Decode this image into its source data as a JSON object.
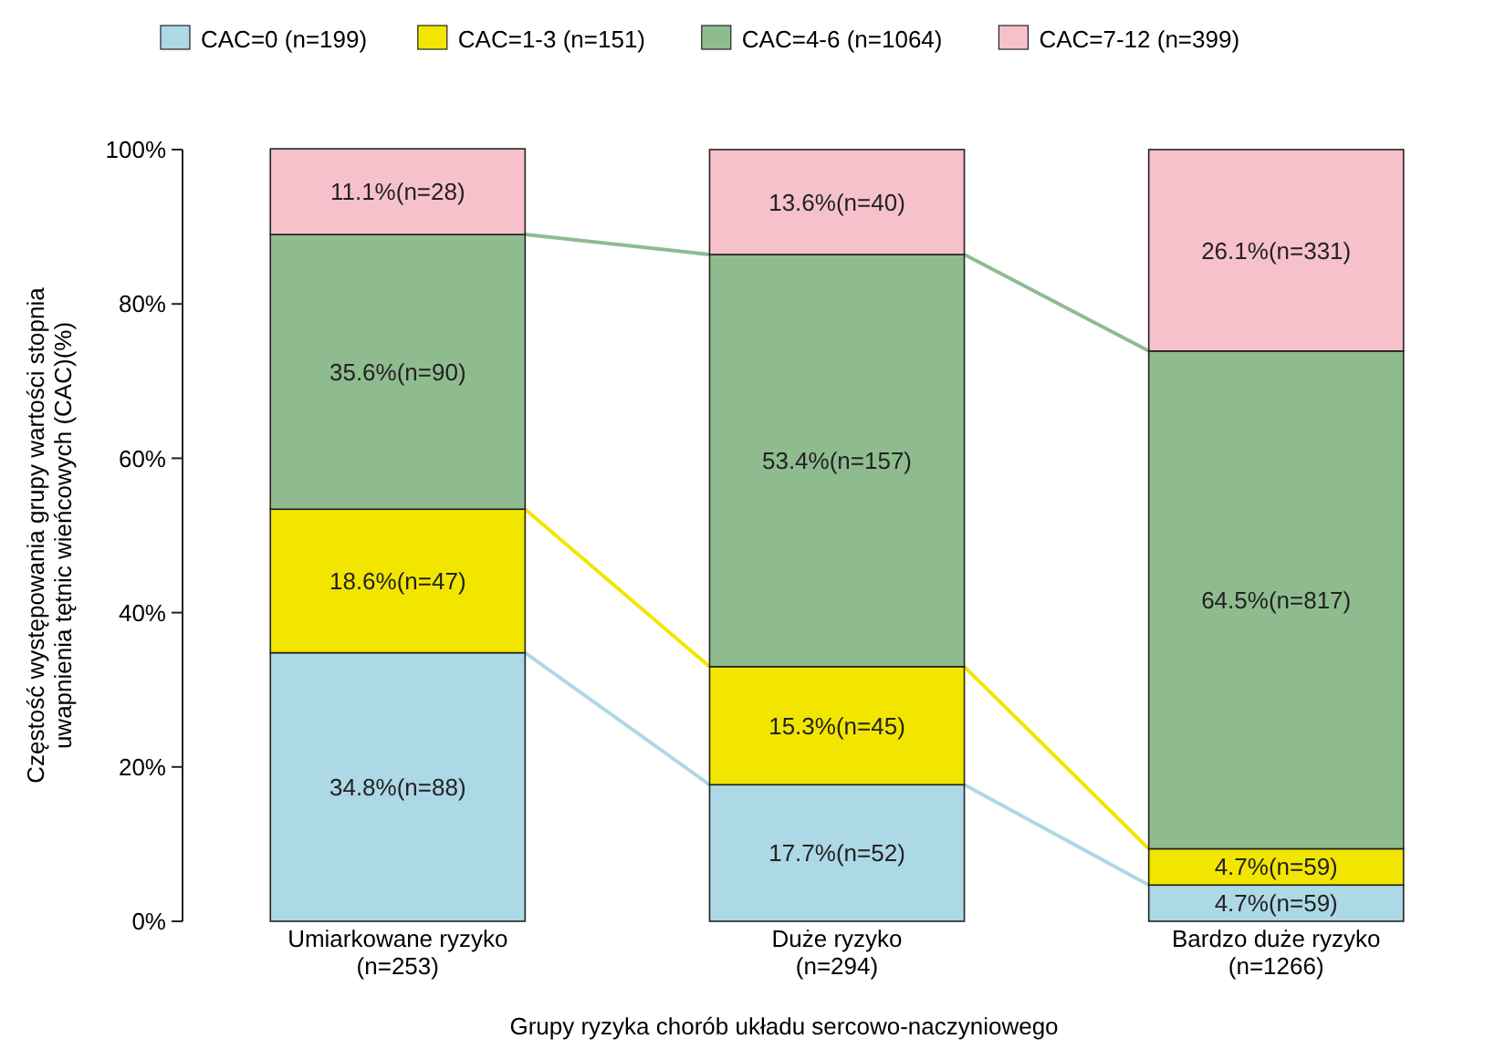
{
  "chart_data": {
    "type": "bar",
    "stacked": true,
    "xlabel": "Grupy ryzyka chorób układu sercowo-naczyniowego",
    "ylabel": "Częstość występowania grupy wartości stopnia\nuwapnienia tętnic wieńcowych (CAC)(%)",
    "categories": [
      "Umiarkowane ryzyko\n(n=253)",
      "Duże ryzyko\n(n=294)",
      "Bardzo duże ryzyko\n(n=1266)"
    ],
    "series": [
      {
        "name": "CAC=0 (n=199)",
        "color": "#add8e6",
        "values": [
          34.8,
          17.7,
          4.7
        ],
        "value_labels": [
          "34.8%(n=88)",
          "17.7%(n=52)",
          "4.7%(n=59)"
        ]
      },
      {
        "name": "CAC=1-3 (n=151)",
        "color": "#f2e600",
        "values": [
          18.6,
          15.3,
          4.7
        ],
        "value_labels": [
          "18.6%(n=47)",
          "15.3%(n=45)",
          "4.7%(n=59)"
        ]
      },
      {
        "name": "CAC=4-6 (n=1064)",
        "color": "#8fbc8f",
        "values": [
          35.6,
          53.4,
          64.5
        ],
        "value_labels": [
          "35.6%(n=90)",
          "53.4%(n=157)",
          "64.5%(n=817)"
        ]
      },
      {
        "name": "CAC=7-12 (n=399)",
        "color": "#f7c1cb",
        "values": [
          11.1,
          13.6,
          26.1
        ],
        "value_labels": [
          "11.1%(n=28)",
          "13.6%(n=40)",
          "26.1%(n=331)"
        ]
      }
    ],
    "ylim": [
      0,
      100
    ],
    "yticks": [
      {
        "value": 0,
        "label": "0%"
      },
      {
        "value": 20,
        "label": "20%"
      },
      {
        "value": 40,
        "label": "40%"
      },
      {
        "value": 60,
        "label": "60%"
      },
      {
        "value": 80,
        "label": "80%"
      },
      {
        "value": 100,
        "label": "100%"
      }
    ],
    "grid": false,
    "legend": "top"
  }
}
